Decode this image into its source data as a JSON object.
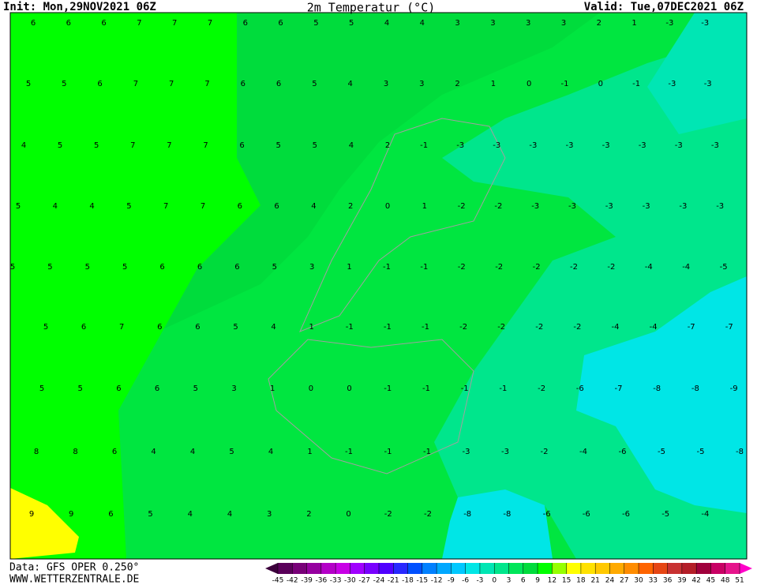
{
  "header": {
    "init": "Init: Mon,29NOV2021 06Z",
    "title": "2m Temperatur (°C)",
    "valid": "Valid: Tue,07DEC2021 06Z"
  },
  "map": {
    "rows": [
      [
        6,
        6,
        6,
        7,
        7,
        7,
        6,
        6,
        5,
        5,
        4,
        4,
        3,
        3,
        3,
        3,
        2,
        1,
        -3,
        -3
      ],
      [
        5,
        5,
        6,
        7,
        7,
        7,
        6,
        6,
        5,
        4,
        3,
        3,
        2,
        1,
        0,
        -1,
        0,
        -1,
        -3,
        -3
      ],
      [
        4,
        5,
        5,
        7,
        7,
        7,
        6,
        5,
        5,
        4,
        2,
        -1,
        -3,
        -3,
        -3,
        -3,
        -3,
        -3,
        -3,
        -3
      ],
      [
        5,
        4,
        4,
        5,
        7,
        7,
        6,
        6,
        4,
        2,
        0,
        1,
        -2,
        -2,
        -3,
        -3,
        -3,
        -3,
        -3,
        -3
      ],
      [
        5,
        5,
        5,
        5,
        6,
        6,
        6,
        5,
        3,
        1,
        -1,
        -1,
        -2,
        -2,
        -2,
        -2,
        -2,
        -4,
        -4,
        -5
      ],
      [
        5,
        6,
        7,
        6,
        6,
        5,
        4,
        1,
        -1,
        -1,
        -1,
        -2,
        -2,
        -2,
        -2,
        -4,
        -4,
        -7,
        -7
      ],
      [
        5,
        5,
        6,
        6,
        5,
        3,
        1,
        0,
        0,
        -1,
        -1,
        -1,
        -1,
        -2,
        -6,
        -7,
        -8,
        -8,
        -9
      ],
      [
        8,
        8,
        6,
        4,
        4,
        5,
        4,
        1,
        -1,
        -1,
        -1,
        -3,
        -3,
        -2,
        -4,
        -6,
        -5,
        -5,
        -8
      ],
      [
        9,
        9,
        6,
        5,
        4,
        4,
        3,
        2,
        0,
        -2,
        -2,
        -8,
        -8,
        -6,
        -6,
        -6,
        -5,
        -4
      ]
    ]
  },
  "colorbar": {
    "ticks": [
      -45,
      -42,
      -39,
      -36,
      -33,
      -30,
      -27,
      -24,
      -21,
      -18,
      -15,
      -12,
      -9,
      -6,
      -3,
      0,
      3,
      6,
      9,
      12,
      15,
      18,
      21,
      24,
      27,
      30,
      33,
      36,
      39,
      42,
      45,
      48,
      51
    ],
    "colors": [
      "#5a005a",
      "#780078",
      "#9600a0",
      "#b400c8",
      "#c800e6",
      "#a000ff",
      "#7800ff",
      "#5000ff",
      "#2828ff",
      "#0050ff",
      "#0080ff",
      "#00a8ff",
      "#00c8ff",
      "#00e6e6",
      "#00e6b4",
      "#00e68c",
      "#00e65a",
      "#00dc3c",
      "#00ff00",
      "#96ff00",
      "#ffff00",
      "#ffe100",
      "#ffc800",
      "#ffaa00",
      "#ff8c00",
      "#ff6400",
      "#e64614",
      "#c83232",
      "#b41e28",
      "#a0003c",
      "#c80064",
      "#e6148c"
    ],
    "low_arrow": "#3c003c",
    "high_arrow": "#ff00c8"
  },
  "footer": {
    "source": "Data: GFS OPER 0.250°",
    "site": "WWW.WETTERZENTRALE.DE"
  }
}
